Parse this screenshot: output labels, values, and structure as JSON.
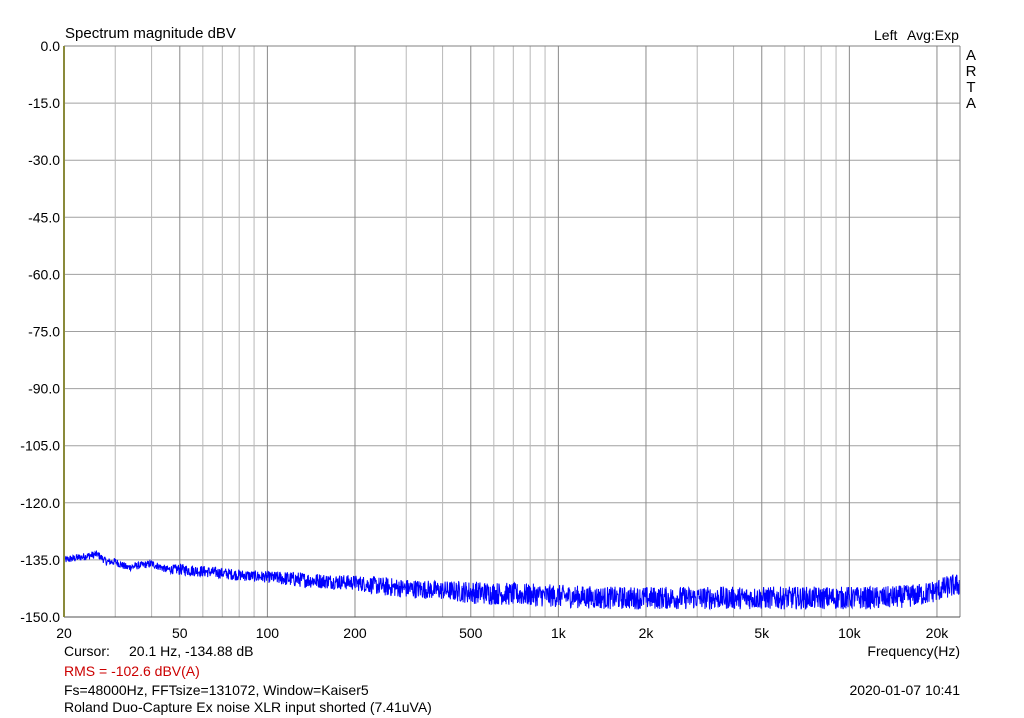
{
  "chart_data": {
    "type": "line",
    "title": "Spectrum magnitude dBV",
    "channel": "Left",
    "averaging": "Avg:Exp",
    "watermark": "ARTA",
    "xlabel": "Frequency(Hz)",
    "ylabel": "",
    "xscale": "log",
    "xlim": [
      20,
      24000
    ],
    "ylim": [
      -150,
      0
    ],
    "x_ticks": [
      {
        "value": 20,
        "label": "20"
      },
      {
        "value": 50,
        "label": "50"
      },
      {
        "value": 100,
        "label": "100"
      },
      {
        "value": 200,
        "label": "200"
      },
      {
        "value": 500,
        "label": "500"
      },
      {
        "value": 1000,
        "label": "1k"
      },
      {
        "value": 2000,
        "label": "2k"
      },
      {
        "value": 5000,
        "label": "5k"
      },
      {
        "value": 10000,
        "label": "10k"
      },
      {
        "value": 20000,
        "label": "20k"
      }
    ],
    "y_ticks": [
      {
        "value": 0,
        "label": "0.0"
      },
      {
        "value": -15,
        "label": "-15.0"
      },
      {
        "value": -30,
        "label": "-30.0"
      },
      {
        "value": -45,
        "label": "-45.0"
      },
      {
        "value": -60,
        "label": "-60.0"
      },
      {
        "value": -75,
        "label": "-75.0"
      },
      {
        "value": -90,
        "label": "-90.0"
      },
      {
        "value": -105,
        "label": "-105.0"
      },
      {
        "value": -120,
        "label": "-120.0"
      },
      {
        "value": -135,
        "label": "-135.0"
      },
      {
        "value": -150,
        "label": "-150.0"
      }
    ],
    "grid": true,
    "series": [
      {
        "color": "#0000ff",
        "x": [
          20,
          22,
          24,
          26,
          28,
          30,
          33,
          36,
          40,
          45,
          50,
          60,
          70,
          80,
          100,
          120,
          150,
          200,
          250,
          300,
          400,
          500,
          700,
          1000,
          1500,
          2000,
          3000,
          5000,
          7000,
          10000,
          13000,
          16000,
          18000,
          20000,
          22000,
          24000
        ],
        "y": [
          -135,
          -134.5,
          -134,
          -133.5,
          -135.5,
          -135.5,
          -137,
          -136.5,
          -136,
          -137.5,
          -137.5,
          -138,
          -138.5,
          -139,
          -139.5,
          -140,
          -140.5,
          -141,
          -142,
          -142.5,
          -143,
          -143.5,
          -144,
          -144.5,
          -145,
          -145,
          -145,
          -145,
          -145,
          -145,
          -145,
          -144.5,
          -144,
          -143,
          -142,
          -141.5
        ],
        "noise_db": [
          1,
          1,
          1,
          1,
          1,
          1,
          1,
          1,
          1,
          1,
          1.5,
          1.5,
          1.5,
          1.5,
          1.5,
          2,
          2,
          2,
          2.5,
          2.5,
          2.5,
          3,
          3,
          3,
          3,
          3,
          3,
          3,
          3,
          3,
          3,
          3,
          3,
          3,
          3,
          3
        ]
      }
    ]
  },
  "cursor": {
    "label": "Cursor:",
    "value": "20.1 Hz, -134.88 dB"
  },
  "rms": {
    "text": "RMS = -102.6 dBV(A)",
    "color": "#cc0000"
  },
  "settings": "Fs=48000Hz, FFTsize=131072, Window=Kaiser5",
  "timestamp": "2020-01-07  10:41",
  "description": "Roland Duo-Capture Ex noise XLR input shorted (7.41uVA)"
}
